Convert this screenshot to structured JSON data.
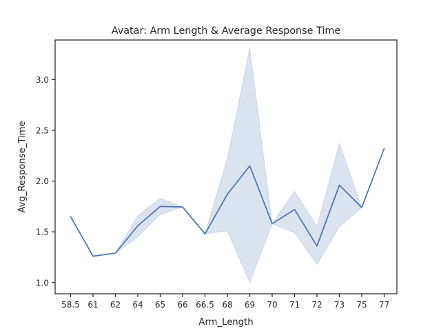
{
  "chart_data": {
    "type": "line",
    "title": "Avatar: Arm Length & Average Response Time",
    "xlabel": "Arm_Length",
    "ylabel": "Avg_Response_Time",
    "categories": [
      "58.5",
      "61",
      "62",
      "64",
      "65",
      "66",
      "66.5",
      "68",
      "69",
      "70",
      "71",
      "72",
      "73",
      "75",
      "77"
    ],
    "yticks": [
      "1.0",
      "1.5",
      "2.0",
      "2.5",
      "3.0"
    ],
    "ylim": [
      0.89,
      3.39
    ],
    "grid": false,
    "legend": "none",
    "series": [
      {
        "values": [
          1.65,
          1.26,
          1.29,
          1.56,
          1.75,
          1.745,
          1.48,
          1.87,
          2.15,
          1.58,
          1.72,
          1.36,
          1.96,
          1.74,
          2.32
        ],
        "ci_low": [
          1.65,
          1.26,
          1.29,
          1.45,
          1.67,
          1.745,
          1.48,
          1.51,
          1.0,
          1.58,
          1.49,
          1.18,
          1.55,
          1.74,
          2.32
        ],
        "ci_high": [
          1.65,
          1.26,
          1.29,
          1.66,
          1.83,
          1.745,
          1.48,
          2.22,
          3.31,
          1.58,
          1.9,
          1.55,
          2.37,
          1.74,
          2.32
        ],
        "color": "#4c72b0"
      }
    ]
  }
}
